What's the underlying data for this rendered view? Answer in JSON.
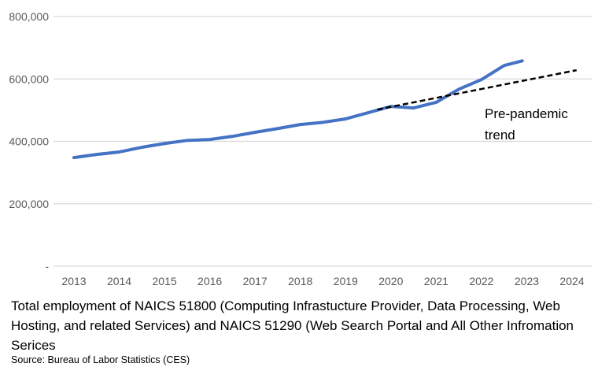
{
  "chart_data": {
    "type": "line",
    "title": "",
    "xlabel": "",
    "ylabel": "",
    "xlim": [
      2013,
      2024
    ],
    "ylim": [
      0,
      800000
    ],
    "x_ticks": [
      "2013",
      "2014",
      "2015",
      "2016",
      "2017",
      "2018",
      "2019",
      "2020",
      "2021",
      "2022",
      "2023",
      "2024"
    ],
    "y_ticks": [
      {
        "value": 0,
        "label": "-"
      },
      {
        "value": 200000,
        "label": "200,000"
      },
      {
        "value": 400000,
        "label": "400,000"
      },
      {
        "value": 600000,
        "label": "600,000"
      },
      {
        "value": 800000,
        "label": "800,000"
      }
    ],
    "grid": "horizontal",
    "series": [
      {
        "color": "#4472C4",
        "style": "solid",
        "x": [
          2013.0,
          2013.5,
          2014.0,
          2014.5,
          2015.0,
          2015.5,
          2016.0,
          2016.5,
          2017.0,
          2017.5,
          2018.0,
          2018.5,
          2019.0,
          2019.5,
          2020.0,
          2020.5,
          2021.0,
          2021.5,
          2022.0,
          2022.5,
          2022.9
        ],
        "y": [
          348000,
          358000,
          366000,
          381000,
          393000,
          403000,
          406000,
          416000,
          429000,
          441000,
          454000,
          461000,
          472000,
          492000,
          512000,
          507000,
          525000,
          567000,
          598000,
          643000,
          658000
        ]
      },
      {
        "name": "Pre-pandemic trend",
        "color": "#000000",
        "style": "dashed",
        "x": [
          2019.7,
          2024.1
        ],
        "y": [
          502000,
          628000
        ]
      }
    ],
    "annotations": [
      {
        "text_line1": "Pre-pandemic",
        "text_line2": "trend"
      }
    ]
  },
  "caption": "Total employment of NAICS 51800 (Computing Infrastucture Provider, Data Processing, Web Hosting, and related Services) and NAICS 51290 (Web Search Portal and All Other Infromation Serices",
  "source": "Source: Bureau of Labor Statistics (CES)"
}
